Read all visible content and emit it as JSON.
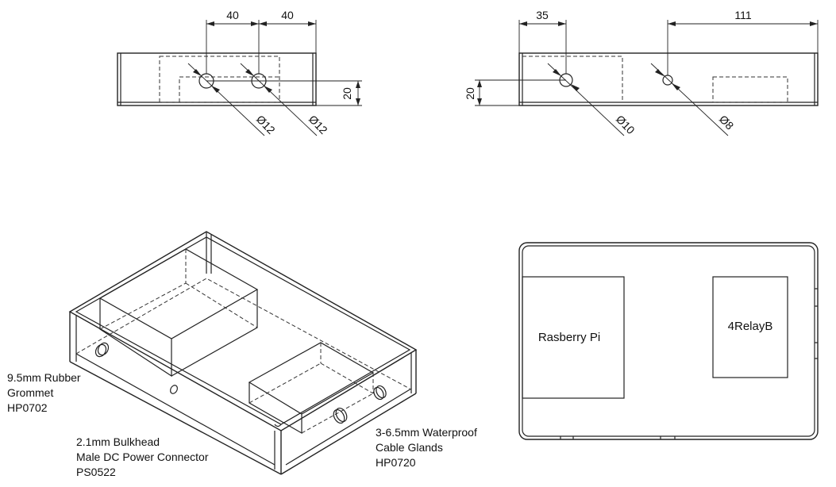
{
  "left_view": {
    "dim_spacing_1": "40",
    "dim_spacing_2": "40",
    "dim_height": "20",
    "hole_1_diameter": "Ø12",
    "hole_2_diameter": "Ø12"
  },
  "right_view": {
    "dim_spacing_1": "35",
    "dim_spacing_2": "111",
    "dim_height": "20",
    "hole_1_diameter": "Ø10",
    "hole_2_diameter": "Ø8"
  },
  "callouts": {
    "grommet": [
      "9.5mm Rubber",
      "Grommet",
      "HP0702"
    ],
    "dc_connector": [
      "2.1mm Bulkhead",
      "Male DC Power Connector",
      "PS0522"
    ],
    "cable_glands": [
      "3-6.5mm Waterproof",
      "Cable Glands",
      "HP0720"
    ]
  },
  "top_view": {
    "component_1": "Rasberry Pi",
    "component_2": "4RelayB"
  }
}
